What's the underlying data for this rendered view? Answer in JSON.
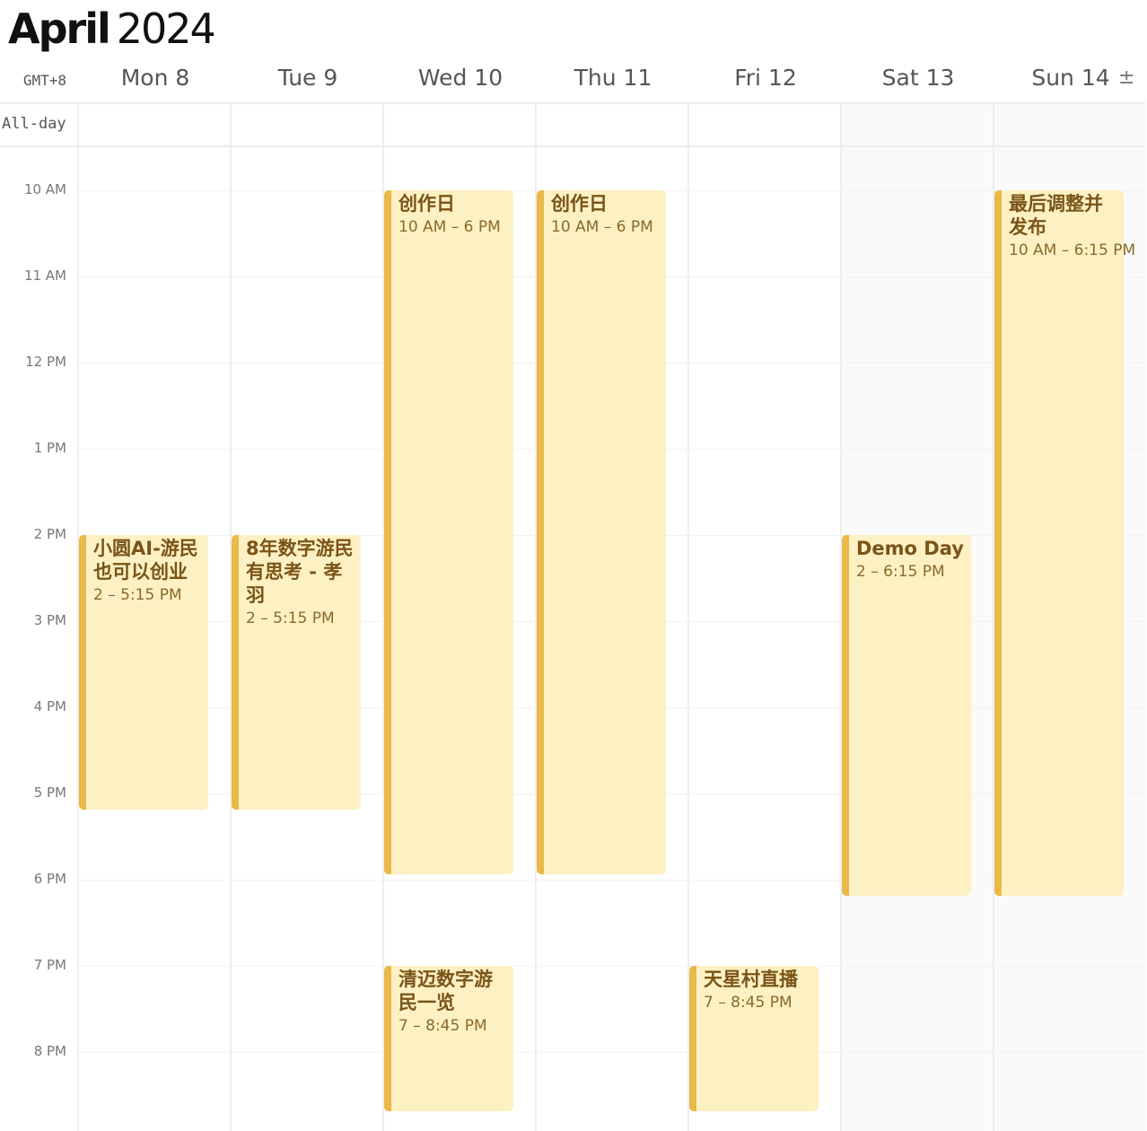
{
  "header": {
    "month": "April",
    "year": "2024",
    "timezone": "GMT+8",
    "toggle_symbol": "±"
  },
  "days": [
    {
      "label": "Mon 8"
    },
    {
      "label": "Tue 9"
    },
    {
      "label": "Wed 10"
    },
    {
      "label": "Thu 11"
    },
    {
      "label": "Fri 12"
    },
    {
      "label": "Sat 13"
    },
    {
      "label": "Sun 14"
    }
  ],
  "allday_label": "All-day",
  "hours": [
    "10 AM",
    "11 AM",
    "12 PM",
    "1 PM",
    "2 PM",
    "3 PM",
    "4 PM",
    "5 PM",
    "6 PM",
    "7 PM",
    "8 PM"
  ],
  "events": [
    {
      "title": "小圆AI-游民也可以创业",
      "time": "2 – 5:15 PM"
    },
    {
      "title": "8年数字游民有思考 - 孝羽",
      "time": "2 – 5:15 PM"
    },
    {
      "title": "创作日",
      "time": "10 AM – 6 PM"
    },
    {
      "title": "清迈数字游民一览",
      "time": "7 – 8:45 PM"
    },
    {
      "title": "创作日",
      "time": "10 AM – 6 PM"
    },
    {
      "title": "天星村直播",
      "time": "7 – 8:45 PM"
    },
    {
      "title": "Demo Day",
      "time": "2 – 6:15 PM"
    },
    {
      "title": "最后调整并发布",
      "time": "10 AM – 6:15 PM"
    }
  ],
  "colors": {
    "event_bg": "#fdf0c3",
    "event_accent": "#e9b949",
    "event_text": "#7a5417",
    "weekend_bg": "#fafafa"
  }
}
